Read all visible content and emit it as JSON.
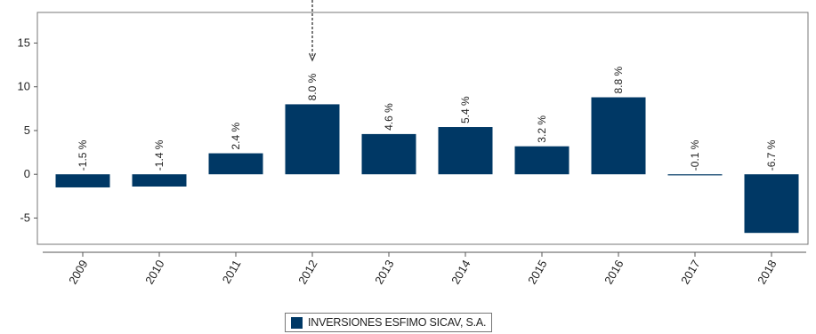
{
  "chart_data": {
    "type": "bar",
    "categories": [
      "2009",
      "2010",
      "2011",
      "2012",
      "2013",
      "2014",
      "2015",
      "2016",
      "2017",
      "2018"
    ],
    "series": [
      {
        "name": "INVERSIONES ESFIMO SICAV, S.A.",
        "values": [
          -1.5,
          -1.4,
          2.4,
          8.0,
          4.6,
          5.4,
          3.2,
          8.8,
          -0.1,
          -6.7
        ],
        "labels": [
          "-1.5 %",
          "-1.4 %",
          "2.4 %",
          "8.0 %",
          "4.6 %",
          "5.4 %",
          "3.2 %",
          "8.8 %",
          "-0.1 %",
          "-6.7 %"
        ]
      }
    ],
    "y_ticks": [
      "15",
      "10",
      "5",
      "0",
      "-5"
    ],
    "ylim": [
      -8,
      18.5
    ],
    "highlight_marker_category": "2012",
    "grid": false,
    "legend_position": "bottom",
    "colors": {
      "bar": "#003865",
      "axis": "#555555",
      "frame": "#777777"
    }
  },
  "legend": {
    "label": "INVERSIONES ESFIMO SICAV, S.A."
  }
}
